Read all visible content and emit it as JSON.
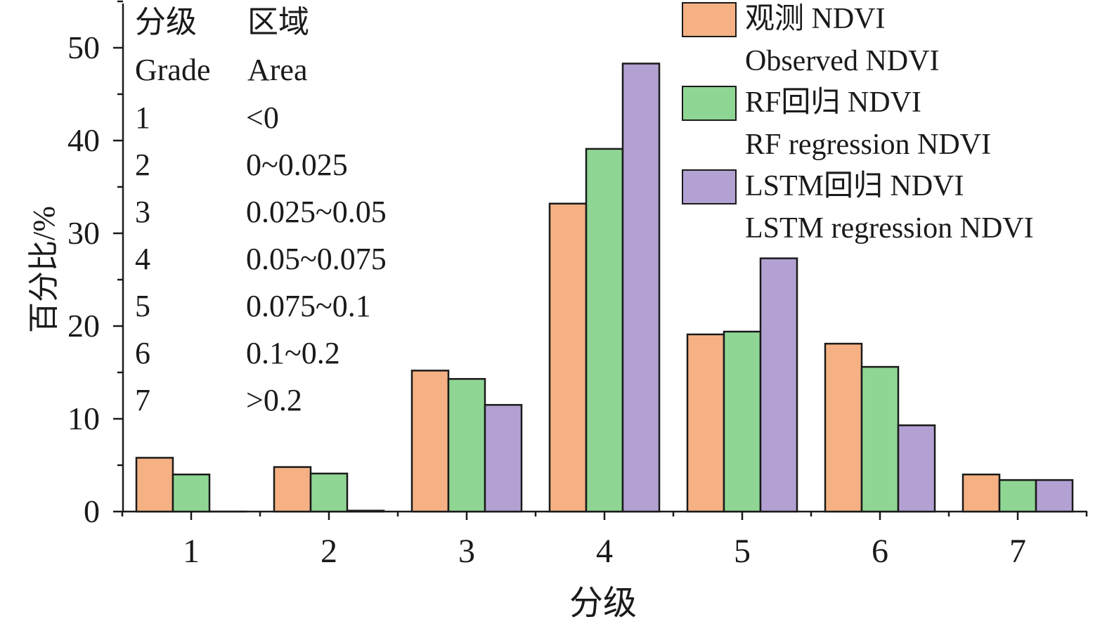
{
  "chart_data": {
    "type": "bar",
    "categories": [
      "1",
      "2",
      "3",
      "4",
      "5",
      "6",
      "7"
    ],
    "series": [
      {
        "name": "观测 NDVI",
        "name_en": "Observed NDVI",
        "color": "#f5b183",
        "values": [
          5.8,
          4.8,
          15.2,
          33.2,
          19.1,
          18.1,
          4.0
        ]
      },
      {
        "name": "RF回归 NDVI",
        "name_en": "RF regression NDVI",
        "color": "#8fd694",
        "values": [
          4.0,
          4.1,
          14.3,
          39.1,
          19.4,
          15.6,
          3.4
        ]
      },
      {
        "name": "LSTM回归 NDVI",
        "name_en": "LSTM regression NDVI",
        "color": "#b3a1d3",
        "values": [
          0,
          0.1,
          11.5,
          48.3,
          27.3,
          9.3,
          3.4
        ]
      }
    ],
    "xlabel": "分级",
    "ylabel": "百分比/%",
    "ylim": [
      0,
      55
    ],
    "yticks": [
      "0",
      "10",
      "20",
      "30",
      "40",
      "50"
    ],
    "legend_position": "top-right",
    "grid": false
  },
  "grade_table": {
    "header_zh": [
      "分级",
      "区域"
    ],
    "header_en": [
      "Grade",
      "Area"
    ],
    "rows": [
      {
        "grade": "1",
        "area": "<0"
      },
      {
        "grade": "2",
        "area": "0~0.025"
      },
      {
        "grade": "3",
        "area": "0.025~0.05"
      },
      {
        "grade": "4",
        "area": "0.05~0.075"
      },
      {
        "grade": "5",
        "area": "0.075~0.1"
      },
      {
        "grade": "6",
        "area": "0.1~0.2"
      },
      {
        "grade": "7",
        "area": ">0.2"
      }
    ]
  }
}
